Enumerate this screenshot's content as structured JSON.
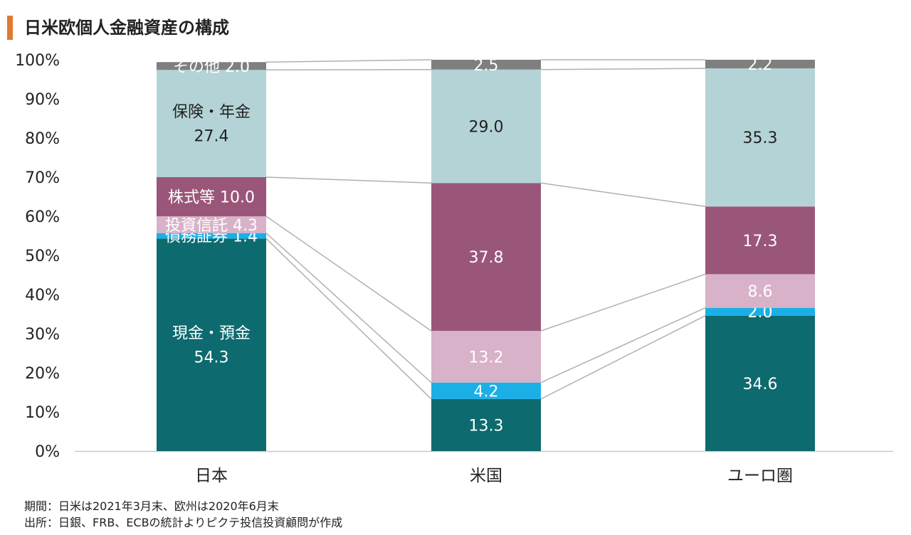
{
  "title": "日米欧個人金融資産の構成",
  "notes": {
    "period": "期間：日米は2021年3月末、欧州は2020年6月末",
    "source": "出所：日銀、FRB、ECBの統計よりピクテ投信投資顧問が作成"
  },
  "colors": {
    "title_accent": "#e07a2e",
    "cash": "#0d6a6e",
    "bonds": "#1aafe6",
    "funds": "#d8b2c8",
    "stocks": "#9a5678",
    "insurance": "#b4d3d6",
    "other": "#7f7f7f"
  },
  "chart_data": {
    "type": "bar",
    "stacked": true,
    "categories": [
      "日本",
      "米国",
      "ユーロ圏"
    ],
    "ylim": [
      0,
      100
    ],
    "y_ticks": [
      "0%",
      "10%",
      "20%",
      "30%",
      "40%",
      "50%",
      "60%",
      "70%",
      "80%",
      "90%",
      "100%"
    ],
    "grid": false,
    "series": [
      {
        "name": "現金・預金",
        "values": [
          54.3,
          13.3,
          34.6
        ],
        "color_key": "cash",
        "labels": [
          [
            "現金・預金",
            "54.3"
          ],
          [
            "13.3"
          ],
          [
            "34.6"
          ]
        ]
      },
      {
        "name": "債務証券",
        "values": [
          1.4,
          4.2,
          2.0
        ],
        "color_key": "bonds",
        "labels": [
          [
            "債務証券 1.4"
          ],
          [
            "4.2"
          ],
          [
            "2.0"
          ]
        ]
      },
      {
        "name": "投資信託",
        "values": [
          4.3,
          13.2,
          8.6
        ],
        "color_key": "funds",
        "labels": [
          [
            "投資信託 4.3"
          ],
          [
            "13.2"
          ],
          [
            "8.6"
          ]
        ]
      },
      {
        "name": "株式等",
        "values": [
          10.0,
          37.8,
          17.3
        ],
        "color_key": "stocks",
        "labels": [
          [
            "株式等 10.0"
          ],
          [
            "37.8"
          ],
          [
            "17.3"
          ]
        ]
      },
      {
        "name": "保険・年金",
        "values": [
          27.4,
          29.0,
          35.3
        ],
        "color_key": "insurance",
        "labels": [
          [
            "保険・年金",
            "27.4"
          ],
          [
            "29.0"
          ],
          [
            "35.3"
          ]
        ]
      },
      {
        "name": "その他",
        "values": [
          2.0,
          2.5,
          2.2
        ],
        "color_key": "other",
        "labels": [
          [
            "その他 2.0"
          ],
          [
            "2.5"
          ],
          [
            "2.2"
          ]
        ]
      }
    ]
  }
}
